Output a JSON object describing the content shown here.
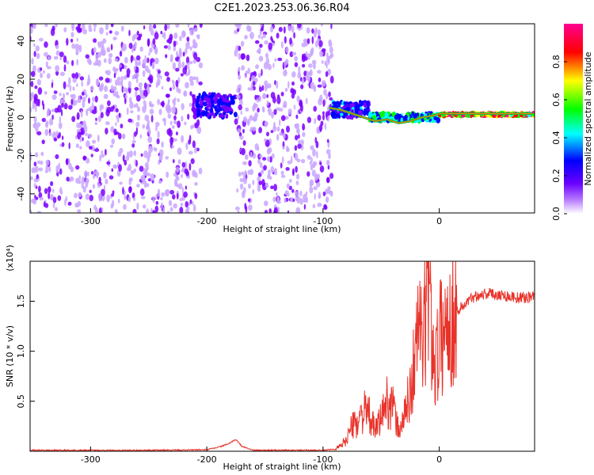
{
  "title": "C2E1.2023.253.06.36.R04",
  "chart_data": [
    {
      "type": "heatmap",
      "xlabel": "Height of straight line (km)",
      "ylabel": "Frequency (Hz)",
      "xlim": [
        -352,
        82
      ],
      "ylim": [
        -50,
        49
      ],
      "xticks": [
        -300,
        -200,
        -100,
        0
      ],
      "yticks": [
        -40,
        -20,
        0,
        20,
        40
      ],
      "colorbar": {
        "label": "Normalized spectral amplitude",
        "range": [
          0,
          1
        ],
        "ticks": [
          "0.0",
          "0.2",
          "0.4",
          "0.6",
          "0.8"
        ],
        "colormap": [
          "#ffffff",
          "#7b00ff",
          "#0000ff",
          "#00ffff",
          "#00ff00",
          "#ffff00",
          "#ff0000",
          "#ff0090"
        ]
      },
      "regions": [
        {
          "x": [
            -352,
            -205
          ],
          "freq": [
            -50,
            49
          ],
          "amplitude": 0.05,
          "note": "broadband noise"
        },
        {
          "x": [
            -205,
            -190
          ],
          "freq": [
            -50,
            49
          ],
          "amplitude": 0.0,
          "note": "gap"
        },
        {
          "x": [
            -212,
            -175
          ],
          "freq": [
            0,
            12
          ],
          "amplitude": 0.3
        },
        {
          "x": [
            -175,
            -92
          ],
          "freq": [
            -50,
            49
          ],
          "amplitude": 0.05,
          "note": "broadband noise"
        },
        {
          "x": [
            -92,
            -60
          ],
          "freq": [
            0,
            8
          ],
          "amplitude": 0.35
        },
        {
          "x": [
            -60,
            0
          ],
          "freq": [
            -2,
            2
          ],
          "amplitude": 0.5
        },
        {
          "x": [
            0,
            82
          ],
          "freq": [
            1,
            2
          ],
          "amplitude": 0.9
        }
      ],
      "ridge": {
        "x": [
          -95,
          -85,
          -75,
          -65,
          -55,
          -45,
          -35,
          -25,
          -15,
          -5,
          0,
          20,
          40,
          60,
          80
        ],
        "freq": [
          5,
          4,
          2,
          0,
          -2,
          -1,
          -3,
          -2,
          0,
          1,
          2,
          2,
          2,
          2,
          2
        ]
      }
    },
    {
      "type": "line",
      "xlabel": "Height of straight line (km)",
      "ylabel": "SNR (10 * v/v)",
      "yscale_label": "(x10⁴)",
      "xlim": [
        -352,
        82
      ],
      "ylim": [
        0,
        1.9
      ],
      "xticks": [
        -300,
        -200,
        -100,
        0
      ],
      "yticks": [
        0.5,
        1.0,
        1.5
      ],
      "ytick_labels": [
        "0.5",
        "1.0",
        "1.5"
      ],
      "color": "#e8332b",
      "series": [
        {
          "x": [
            -352,
            -300,
            -250,
            -200,
            -190,
            -180,
            -175,
            -170,
            -160,
            -120,
            -100,
            -90,
            -85,
            -80,
            -75,
            -70,
            -65,
            -60,
            -55,
            -50,
            -45,
            -40,
            -35,
            -30,
            -25,
            -20,
            -17,
            -15,
            -12,
            -10,
            -7,
            -5,
            -3,
            0,
            5,
            10,
            20,
            30,
            40,
            50,
            60,
            70,
            82
          ],
          "y": [
            0.01,
            0.01,
            0.01,
            0.015,
            0.04,
            0.08,
            0.12,
            0.05,
            0.01,
            0.01,
            0.01,
            0.02,
            0.05,
            0.12,
            0.25,
            0.3,
            0.4,
            0.35,
            0.2,
            0.35,
            0.5,
            0.45,
            0.2,
            0.35,
            0.6,
            1.0,
            1.4,
            1.0,
            1.3,
            1.9,
            1.2,
            1.0,
            0.9,
            1.1,
            1.25,
            1.35,
            1.45,
            1.55,
            1.58,
            1.57,
            1.55,
            1.53,
            1.55
          ]
        }
      ]
    }
  ]
}
